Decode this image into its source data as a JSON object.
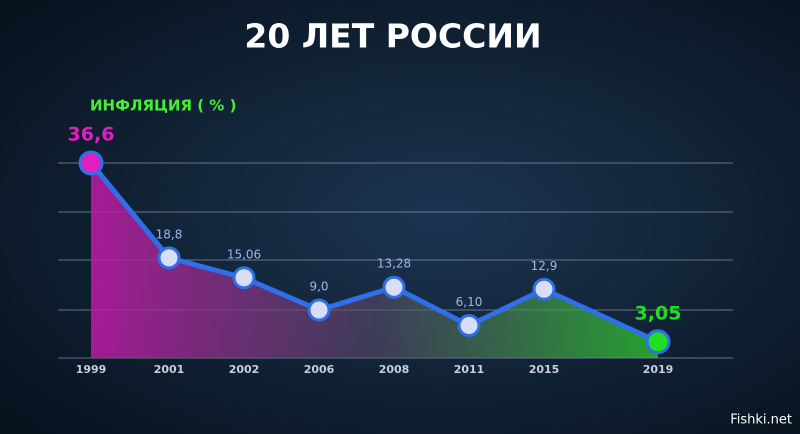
{
  "chart_data": {
    "type": "line",
    "title": "20 ЛЕТ РОССИИ",
    "subtitle": "ИНФЛЯЦИЯ ( % )",
    "categories": [
      "1999",
      "2001",
      "2002",
      "2006",
      "2008",
      "2011",
      "2015",
      "2019"
    ],
    "values": [
      36.6,
      18.8,
      15.06,
      9.0,
      13.28,
      6.1,
      12.9,
      3.05
    ],
    "value_labels": [
      "36,6",
      "18,8",
      "15,06",
      "9,0",
      "13,28",
      "6,10",
      "12,9",
      "3,05"
    ],
    "color": "#2f6fe8",
    "marker_color": "#d9ddf6",
    "first_color": "#e01fc0",
    "last_color": "#22dd22",
    "ylim": [
      0,
      36.6
    ],
    "grid": true
  },
  "watermark": "Fishki.net"
}
